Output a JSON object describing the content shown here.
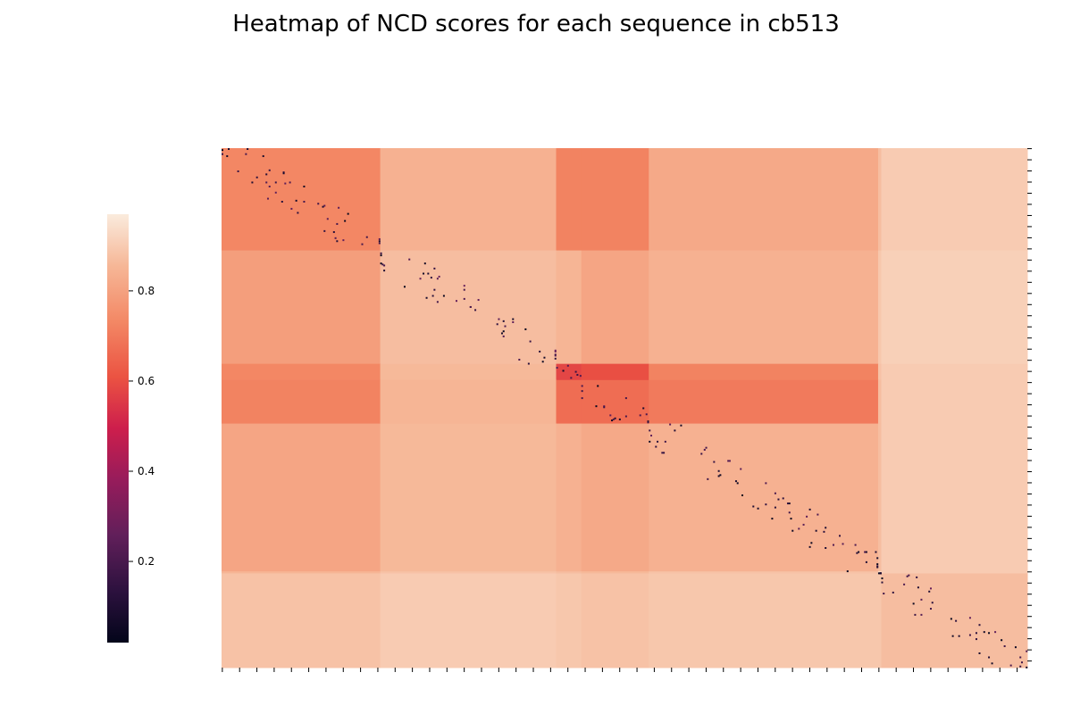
{
  "chart_data": {
    "type": "heatmap",
    "title": "Heatmap of NCD scores for each sequence in cb513",
    "xlabel": "",
    "ylabel": "",
    "n_sequences": 513,
    "value_range": [
      0.02,
      0.97
    ],
    "colormap": "rocket",
    "colorbar": {
      "position": "left",
      "ticks": [
        0.2,
        0.4,
        0.6,
        0.8
      ],
      "tick_labels": [
        "0.2",
        "0.4",
        "0.6",
        "0.8"
      ]
    },
    "cluster_boundaries": [
      0,
      101,
      213,
      229,
      272,
      418,
      420,
      513
    ],
    "block_values": [
      [
        0.73,
        0.84,
        0.72,
        0.72,
        0.82,
        0.87,
        0.9
      ],
      [
        0.79,
        0.87,
        0.85,
        0.81,
        0.84,
        0.89,
        0.91
      ],
      [
        0.73,
        0.86,
        0.58,
        0.6,
        0.72,
        0.88,
        0.9
      ],
      [
        0.72,
        0.85,
        0.67,
        0.67,
        0.7,
        0.87,
        0.9
      ],
      [
        0.81,
        0.86,
        0.84,
        0.82,
        0.84,
        0.87,
        0.9
      ],
      [
        0.85,
        0.88,
        0.87,
        0.86,
        0.88,
        0.95,
        0.9
      ],
      [
        0.88,
        0.9,
        0.89,
        0.88,
        0.89,
        0.89,
        0.87
      ]
    ],
    "near_diagonal_low_values": "scattered dark cells (NCD ~0.02-0.2) along intra-cluster diagonals"
  }
}
